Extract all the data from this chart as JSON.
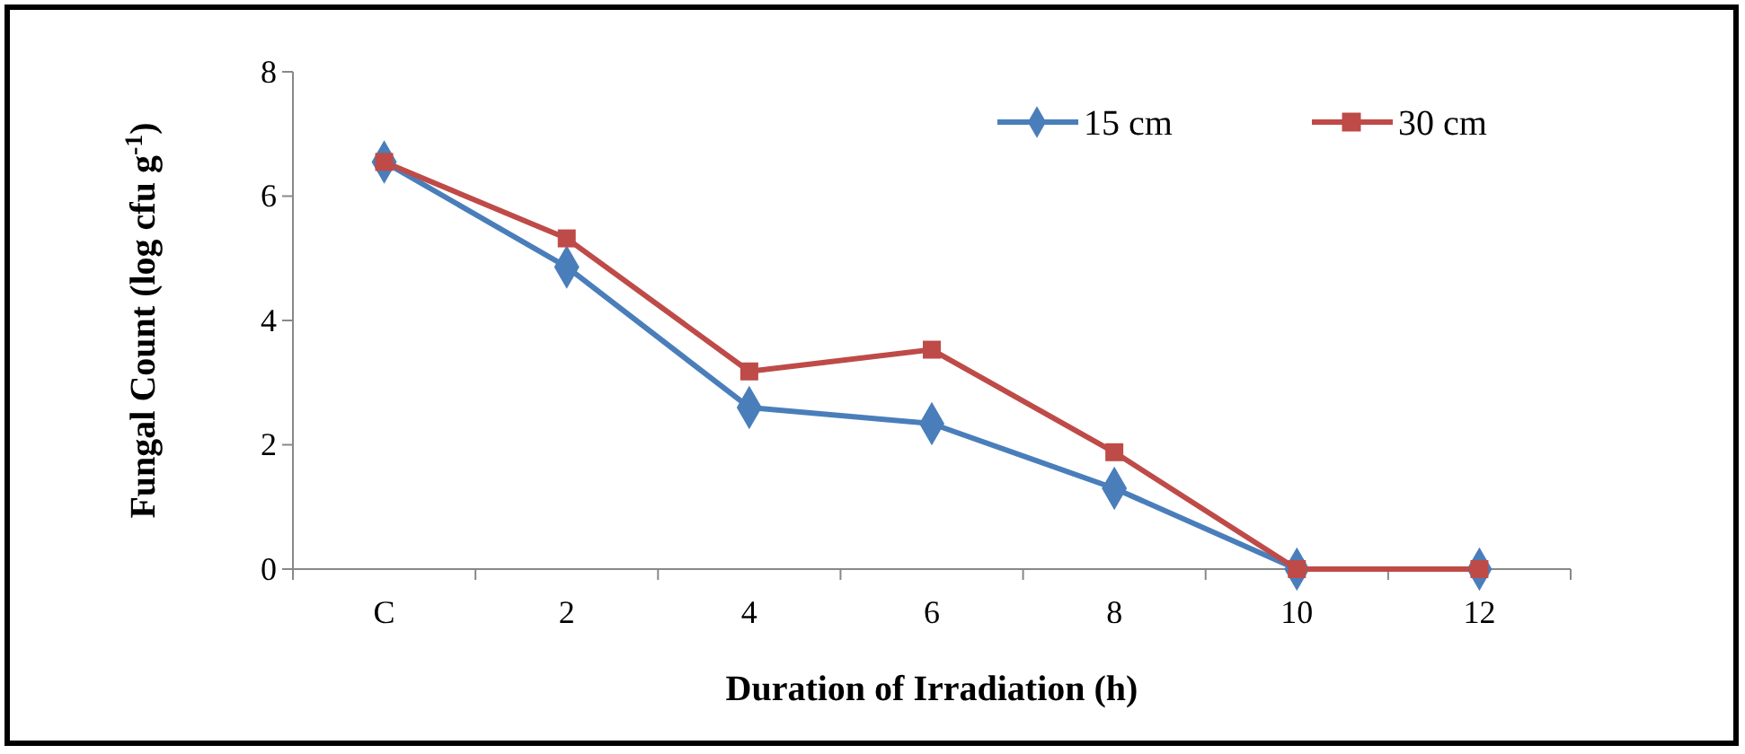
{
  "chart_data": {
    "type": "line",
    "xlabel": "Duration of Irradiation (h)",
    "ylabel": "Fungal Count (log cfu g$^{-1}$)",
    "categories": [
      "C",
      "2",
      "4",
      "6",
      "8",
      "10",
      "12"
    ],
    "series": [
      {
        "name": "15 cm",
        "color": "#4a7ebb",
        "marker": "diamond",
        "values": [
          6.55,
          4.86,
          2.6,
          2.34,
          1.3,
          0,
          0
        ]
      },
      {
        "name": "30 cm",
        "color": "#be4b48",
        "marker": "square",
        "values": [
          6.55,
          5.32,
          3.18,
          3.53,
          1.88,
          0,
          0
        ]
      }
    ],
    "ylim": [
      0,
      8
    ],
    "yticks": [
      0,
      2,
      4,
      6,
      8
    ],
    "grid": false,
    "legend": "top right",
    "line_style": "solid"
  }
}
